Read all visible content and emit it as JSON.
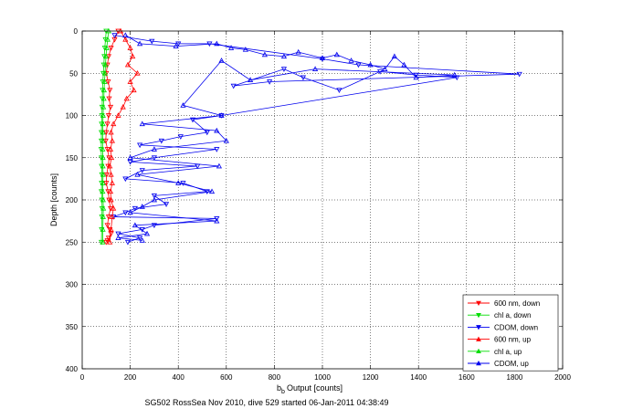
{
  "chart_data": {
    "type": "scatter",
    "title": "",
    "caption": "SG502 RossSea Nov 2010, dive 529 started 06-Jan-2011 04:38:49",
    "xlabel": "Output [counts]",
    "xlabel_prefix": "b",
    "xlabel_subscript": "b",
    "ylabel": "Depth [counts]",
    "xlim": [
      0,
      2000
    ],
    "ylim": [
      400,
      0
    ],
    "y_reversed": true,
    "grid": true,
    "legend_position": "lower-right",
    "x_ticks": [
      0,
      200,
      400,
      600,
      800,
      1000,
      1200,
      1400,
      1600,
      1800,
      2000
    ],
    "y_ticks": [
      0,
      50,
      100,
      150,
      200,
      250,
      300,
      350,
      400
    ],
    "x_tick_labels": [
      "0",
      "200",
      "400",
      "600",
      "800",
      "1000",
      "1200",
      "1400",
      "1600",
      "1800",
      "2000"
    ],
    "y_tick_labels": [
      "0",
      "50",
      "100",
      "150",
      "200",
      "250",
      "300",
      "350",
      "400"
    ],
    "series": [
      {
        "name": "600 nm, down",
        "color": "#ff0000",
        "marker": "triangle-down",
        "x": [
          150,
          135,
          120,
          110,
          105,
          100,
          108,
          115,
          112,
          118,
          110,
          105,
          100,
          98,
          105,
          112,
          108,
          102,
          100,
          108,
          112,
          118,
          110,
          105,
          115,
          120,
          110,
          105,
          100
        ],
        "y": [
          0,
          10,
          20,
          30,
          40,
          50,
          60,
          70,
          80,
          90,
          100,
          110,
          120,
          130,
          140,
          150,
          160,
          170,
          180,
          190,
          200,
          210,
          220,
          230,
          235,
          240,
          245,
          248,
          250
        ]
      },
      {
        "name": "chl a, down",
        "color": "#00dd00",
        "marker": "triangle-down",
        "x": [
          100,
          97,
          94,
          92,
          90,
          88,
          86,
          85,
          84,
          83,
          82,
          81,
          80,
          80,
          79,
          80,
          81,
          82,
          81,
          80,
          82,
          83,
          82,
          81,
          80
        ],
        "y": [
          0,
          10,
          20,
          30,
          40,
          50,
          60,
          70,
          80,
          90,
          100,
          110,
          120,
          130,
          140,
          150,
          160,
          170,
          180,
          190,
          200,
          210,
          220,
          235,
          250
        ]
      },
      {
        "name": "CDOM, down",
        "color": "#0000ee",
        "marker": "triangle-down",
        "x": [
          135,
          290,
          400,
          530,
          1000,
          1150,
          1820,
          780,
          630,
          840,
          920,
          1070,
          1240,
          1390,
          1560,
          580,
          460,
          520,
          410,
          330,
          240,
          560,
          300,
          200,
          480,
          250,
          180,
          420,
          520,
          300,
          350,
          220,
          180,
          130,
          560,
          300,
          250,
          150,
          240,
          190
        ],
        "y": [
          5,
          12,
          15,
          15,
          33,
          40,
          51,
          60,
          65,
          45,
          55,
          70,
          48,
          52,
          55,
          100,
          105,
          120,
          125,
          130,
          135,
          140,
          150,
          155,
          160,
          165,
          175,
          180,
          190,
          195,
          205,
          210,
          215,
          220,
          222,
          230,
          235,
          240,
          245,
          250
        ]
      },
      {
        "name": "600 nm, up",
        "color": "#ff0000",
        "marker": "triangle-up",
        "x": [
          160,
          180,
          200,
          210,
          190,
          230,
          200,
          215,
          185,
          170,
          150,
          130,
          120,
          125,
          118,
          122,
          115,
          120,
          125,
          118,
          120,
          130,
          125,
          120,
          115
        ],
        "y": [
          0,
          10,
          20,
          30,
          40,
          50,
          60,
          70,
          80,
          90,
          100,
          110,
          120,
          130,
          140,
          150,
          160,
          170,
          180,
          190,
          200,
          210,
          220,
          235,
          250
        ]
      },
      {
        "name": "chl a, up",
        "color": "#00dd00",
        "marker": "triangle-up",
        "x": [
          110,
          106,
          102,
          99,
          97,
          95,
          93,
          91,
          90,
          88,
          87,
          86,
          86,
          85,
          85,
          86,
          86,
          87,
          86,
          85,
          87,
          88,
          87,
          86,
          85
        ],
        "y": [
          0,
          10,
          20,
          30,
          40,
          50,
          60,
          70,
          80,
          90,
          100,
          110,
          120,
          130,
          140,
          150,
          160,
          170,
          180,
          190,
          200,
          210,
          220,
          235,
          250
        ]
      },
      {
        "name": "CDOM, up",
        "color": "#0000ee",
        "marker": "triangle-up",
        "x": [
          180,
          240,
          390,
          560,
          620,
          680,
          760,
          840,
          900,
          1000,
          1060,
          1120,
          1200,
          1260,
          1300,
          1340,
          1390,
          1550,
          970,
          700,
          580,
          420,
          580,
          250,
          560,
          600,
          300,
          200,
          570,
          230,
          400,
          540,
          300,
          250,
          200,
          560,
          220,
          270,
          150,
          250
        ],
        "y": [
          5,
          15,
          18,
          15,
          20,
          22,
          28,
          30,
          25,
          32,
          28,
          35,
          40,
          45,
          30,
          40,
          55,
          52,
          45,
          58,
          35,
          88,
          100,
          110,
          118,
          130,
          140,
          150,
          160,
          170,
          180,
          190,
          200,
          208,
          215,
          225,
          230,
          240,
          245,
          248
        ]
      }
    ]
  }
}
